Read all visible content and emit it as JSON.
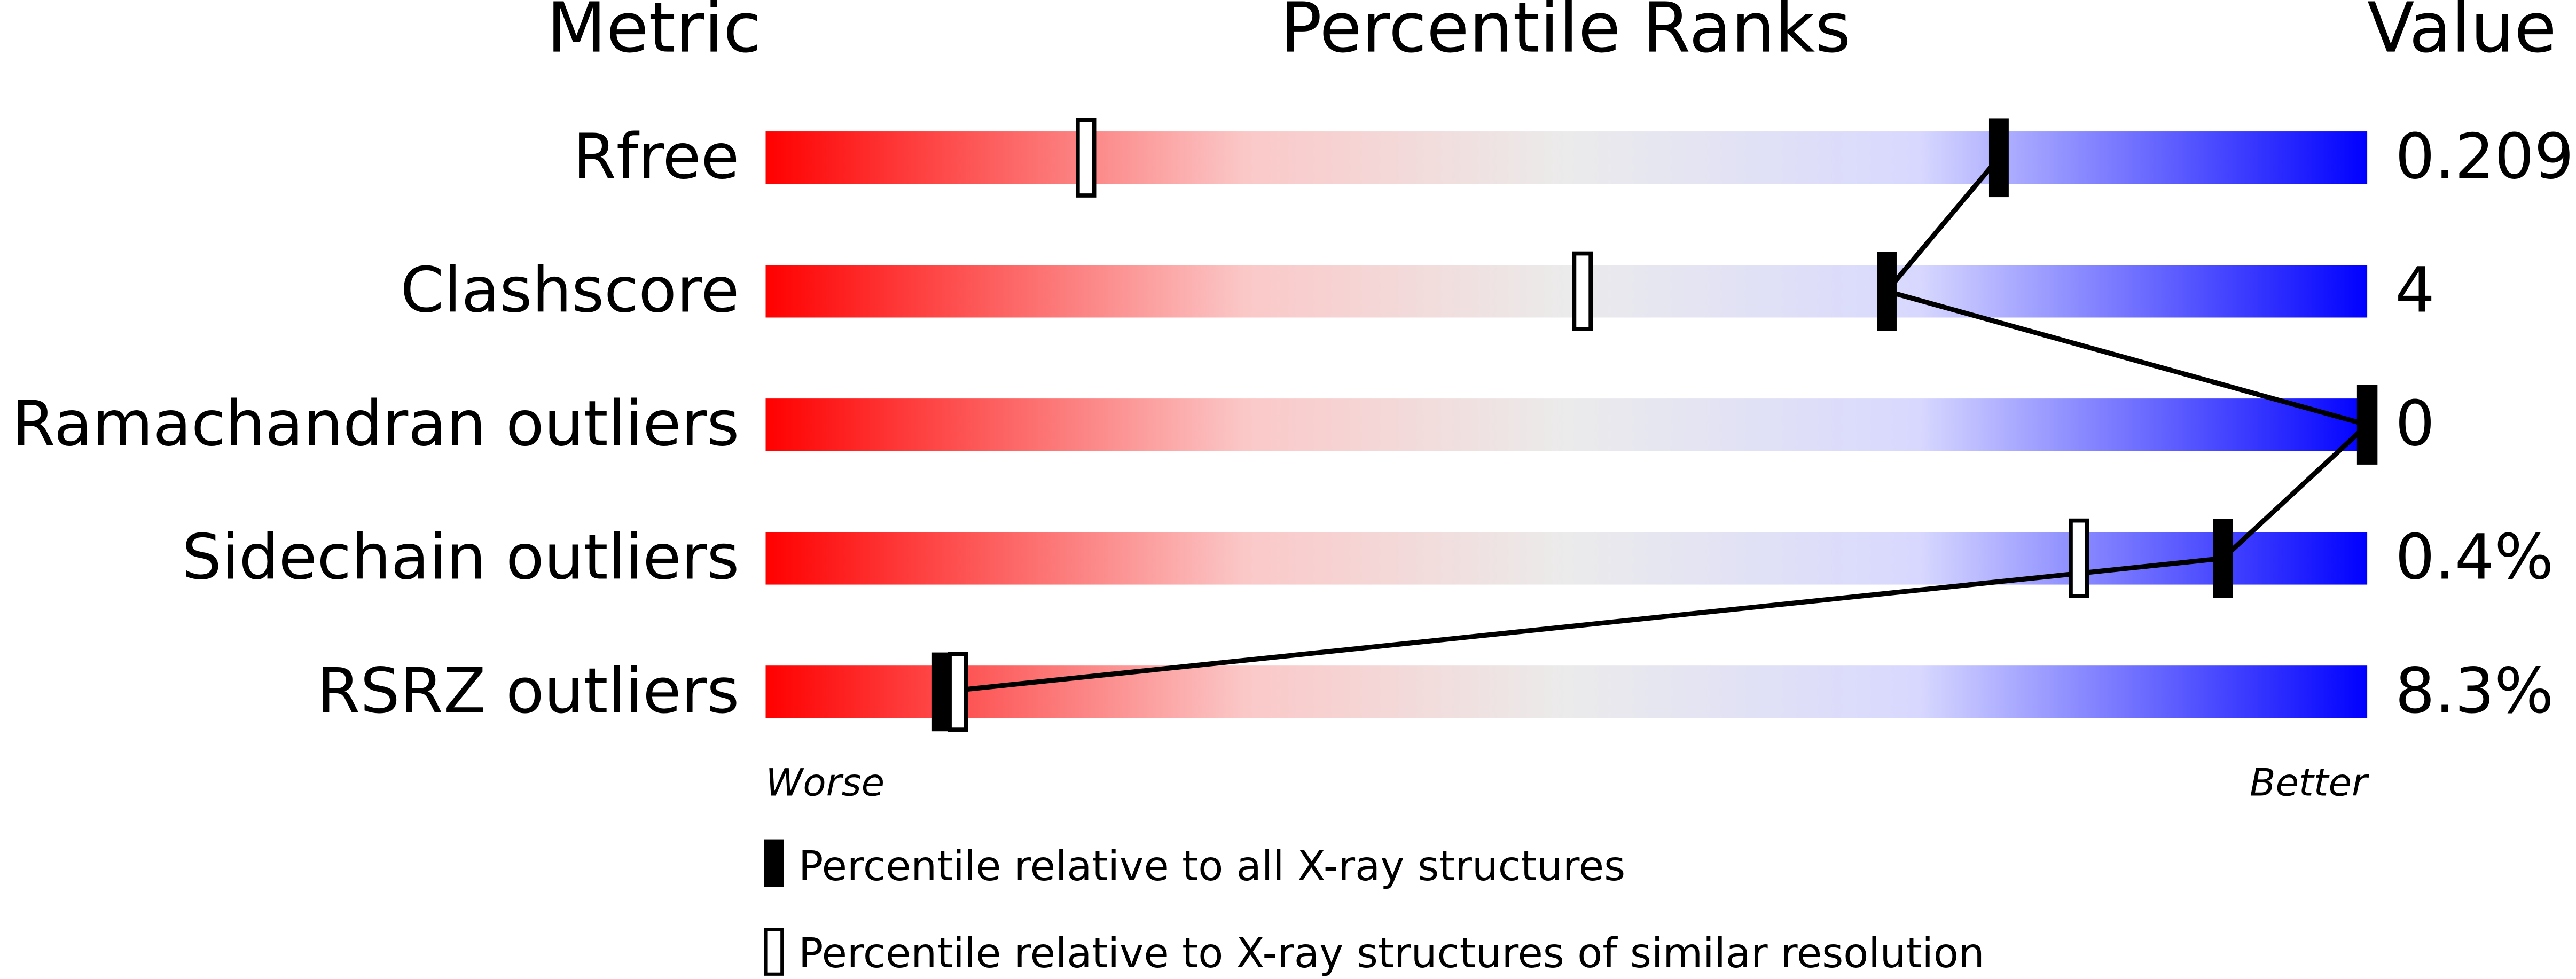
{
  "chart_data": {
    "type": "percentile",
    "headers": [
      "Metric",
      "Percentile Ranks",
      "Value"
    ],
    "categories": [
      "Rfree",
      "Clashscore",
      "Ramachandran outliers",
      "Sidechain outliers",
      "RSRZ outliers"
    ],
    "printed_values": [
      "0.209",
      "4",
      "0",
      "0.4%",
      "8.3%"
    ],
    "series": [
      {
        "name": "Percentile relative to all X-ray structures",
        "color": "#000000",
        "values": [
          77,
          70,
          100,
          91,
          11
        ]
      },
      {
        "name": "Percentile relative to X-ray structures of similar resolution",
        "color": "#ffffff",
        "values": [
          20,
          51,
          100,
          82,
          12
        ]
      }
    ],
    "xlim": [
      0,
      100
    ],
    "axis_labels": [
      "Worse",
      "Better"
    ]
  }
}
